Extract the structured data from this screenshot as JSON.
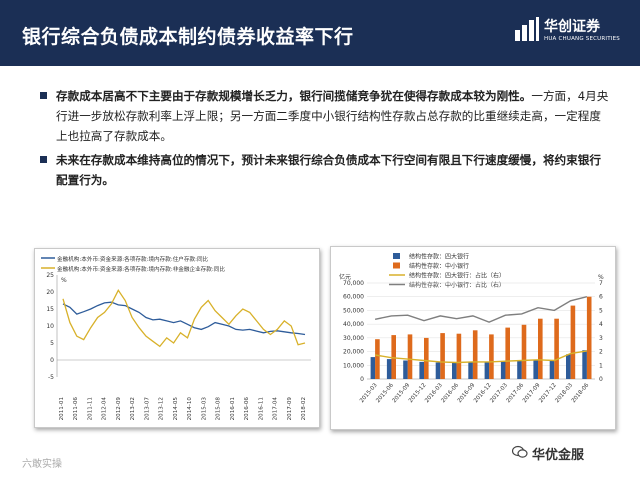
{
  "slide": {
    "title": "银行综合负债成本制约债券收益率下行",
    "logo": {
      "name": "华创证券",
      "english": "HUA CHUANG SECURITIES"
    }
  },
  "bullets": [
    {
      "bold": "存款成本居高不下主要由于存款规模增长乏力，银行间揽储竞争犹在使得存款成本较为刚性。",
      "normal": "一方面，4月央行进一步放松存款利率上浮上限；另一方面二季度中小银行结构性存款占总存款的比重继续走高，一定程度上也拉高了存款成本。"
    },
    {
      "bold": "未来在存款成本维持高位的情况下，预计未来银行综合负债成本下行空间有限且下行速度缓慢，将约束银行配置行为。",
      "normal": ""
    }
  ],
  "footer": {
    "left": "六敢实操",
    "right": "华优金服"
  },
  "colors": {
    "header_bg": "#1b2f55",
    "blue_series": "#2e5c9a",
    "yellow_series": "#d8b12a",
    "orange_bar": "#de6a1c",
    "gray_line": "#7f7f7f"
  },
  "chart_data": [
    {
      "type": "line",
      "legend": [
        "金融机构:本外币:资金来源:各项存款:境内存款:住户存款:同比",
        "金融机构:本外币:资金来源:各项存款:境内存款:非金融企业存款:同比"
      ],
      "unit": "%",
      "ylim": [
        -5,
        25
      ],
      "yticks": [
        "-5",
        "0",
        "5",
        "10",
        "15",
        "20",
        "25"
      ],
      "xticks": [
        "2011-01",
        "2011-06",
        "2011-11",
        "2012-04",
        "2012-09",
        "2013-02",
        "2013-07",
        "2013-12",
        "2014-05",
        "2014-10",
        "2015-03",
        "2015-08",
        "2016-01",
        "2016-06",
        "2016-11",
        "2017-04",
        "2017-09",
        "2018-02"
      ],
      "series": [
        {
          "name": "金融机构:本外币:资金来源:各项存款:境内存款:住户存款:同比",
          "color": "#2e5c9a",
          "values": [
            16.5,
            15.5,
            13.5,
            14.2,
            15.0,
            16.0,
            16.8,
            17.0,
            16.2,
            16.0,
            15.0,
            14.0,
            12.5,
            11.8,
            12.0,
            11.5,
            11.0,
            11.5,
            10.5,
            9.5,
            9.0,
            9.8,
            11.0,
            10.5,
            10.0,
            9.0,
            8.8,
            9.0,
            8.5,
            8.0,
            8.4,
            8.6,
            8.3,
            8.0,
            7.8,
            7.5
          ]
        },
        {
          "name": "金融机构:本外币:资金来源:各项存款:境内存款:非金融企业存款:同比",
          "color": "#d8b12a",
          "values": [
            18.0,
            11.0,
            7.0,
            6.0,
            9.5,
            12.5,
            14.0,
            16.5,
            20.5,
            17.5,
            12.5,
            9.5,
            7.0,
            5.5,
            4.0,
            6.5,
            5.0,
            8.0,
            6.5,
            12.0,
            15.5,
            17.5,
            14.5,
            12.5,
            10.5,
            13.0,
            15.0,
            14.0,
            11.5,
            9.0,
            7.5,
            9.0,
            11.5,
            10.0,
            4.5,
            5.0
          ]
        }
      ]
    },
    {
      "type": "bar",
      "categories": [
        "2015-03",
        "2015-06",
        "2015-09",
        "2015-12",
        "2016-03",
        "2016-06",
        "2016-09",
        "2016-12",
        "2017-03",
        "2017-06",
        "2017-09",
        "2017-12",
        "2018-03",
        "2018-06"
      ],
      "left_unit": "亿元",
      "right_unit": "%",
      "ylim": [
        0,
        70000
      ],
      "yticks": [
        "0",
        "10,000",
        "20,000",
        "30,000",
        "40,000",
        "50,000",
        "60,000",
        "70,000"
      ],
      "y2lim": [
        0,
        7
      ],
      "y2ticks": [
        "0",
        "1",
        "2",
        "3",
        "4",
        "5",
        "6",
        "7"
      ],
      "series": [
        {
          "name": "结构性存款：四大银行",
          "kind": "bar",
          "color": "#2e5c9a",
          "values": [
            16000,
            14500,
            13500,
            12500,
            12000,
            12000,
            12500,
            12500,
            13000,
            13500,
            14000,
            13500,
            18000,
            21000
          ]
        },
        {
          "name": "结构性存款：中小银行",
          "kind": "bar",
          "color": "#de6a1c",
          "values": [
            29000,
            32000,
            32500,
            30000,
            33500,
            33000,
            35500,
            32500,
            37500,
            39500,
            44000,
            44000,
            53500,
            60000
          ]
        },
        {
          "name": "结构性存款：四大银行：占比（右）",
          "kind": "line",
          "color": "#d8b12a",
          "values": [
            1.75,
            1.55,
            1.45,
            1.35,
            1.25,
            1.2,
            1.25,
            1.25,
            1.3,
            1.35,
            1.4,
            1.35,
            1.85,
            2.05
          ]
        },
        {
          "name": "结构性存款：中小银行：占比（右）",
          "kind": "line",
          "color": "#7f7f7f",
          "values": [
            4.35,
            4.6,
            4.65,
            4.25,
            4.6,
            4.4,
            4.6,
            4.15,
            4.65,
            4.75,
            5.2,
            5.0,
            5.7,
            6.0
          ]
        }
      ]
    }
  ]
}
